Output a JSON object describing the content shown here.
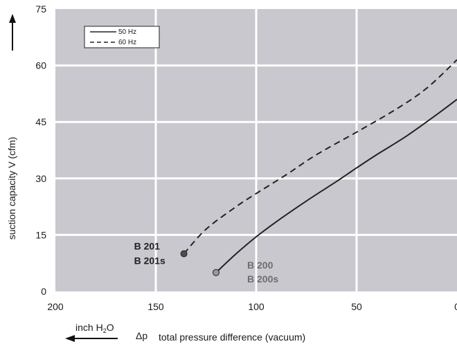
{
  "chart_data": {
    "type": "line",
    "title": "",
    "ylabel": "suction capacity V (cfm)",
    "xlabel": "total pressure difference (vacuum)",
    "xlabel_symbol": "Δp",
    "x_unit": "inch H",
    "x_unit_sub": "2",
    "x_unit_tail": "O",
    "x_reversed": true,
    "xlim": [
      0,
      200
    ],
    "ylim": [
      0,
      75
    ],
    "x_ticks": [
      "200",
      "150",
      "100",
      "50",
      "0"
    ],
    "x_tick_values": [
      200,
      150,
      100,
      50,
      0
    ],
    "y_ticks": [
      "75",
      "60",
      "45",
      "30",
      "15",
      "0"
    ],
    "y_tick_values": [
      75,
      60,
      45,
      30,
      15,
      0
    ],
    "grid": true,
    "legend_position": "top-left",
    "colors": {
      "plot_bg": "#c8c8ce",
      "grid": "#ffffff",
      "line": "#222222",
      "point_dark": "#4d4d4d",
      "point_grey": "#999999"
    },
    "series": [
      {
        "name": "50 Hz",
        "style": "solid",
        "x": [
          120,
          110,
          100,
          90,
          75,
          60,
          50,
          40,
          25,
          10,
          0
        ],
        "y": [
          5,
          10,
          14.5,
          18.5,
          24,
          29.2,
          32.8,
          36.3,
          41.3,
          47,
          51
        ]
      },
      {
        "name": "60 Hz",
        "style": "dashed",
        "x": [
          136,
          125,
          110,
          100,
          85,
          70,
          50,
          30,
          15,
          0
        ],
        "y": [
          10,
          16.5,
          22.5,
          26,
          31,
          36.3,
          42.3,
          48.5,
          54,
          61.5
        ]
      }
    ],
    "points": [
      {
        "label_lines": [
          "B 201",
          "B 201s"
        ],
        "x": 136,
        "y": 10,
        "tone": "dark"
      },
      {
        "label_lines": [
          "B 200",
          "B 200s"
        ],
        "x": 120,
        "y": 5,
        "tone": "grey"
      }
    ]
  }
}
